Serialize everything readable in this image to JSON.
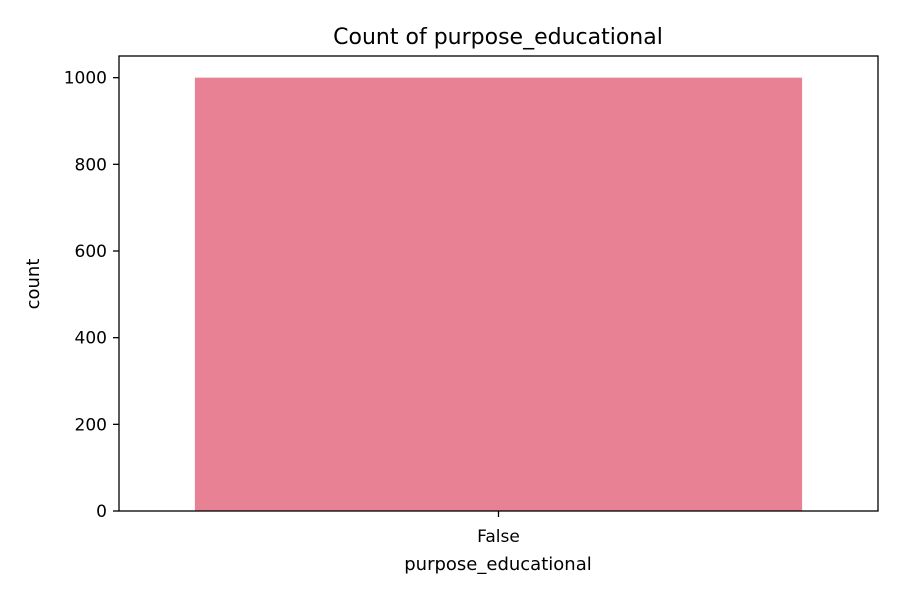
{
  "chart_data": {
    "type": "bar",
    "title": "Count of purpose_educational",
    "xlabel": "purpose_educational",
    "ylabel": "count",
    "categories": [
      "False"
    ],
    "values": [
      1000
    ],
    "ylim": [
      0,
      1050
    ],
    "yticks": [
      0,
      200,
      400,
      600,
      800,
      1000
    ],
    "bar_color": "#e78193",
    "grid": false,
    "legend": "none"
  }
}
